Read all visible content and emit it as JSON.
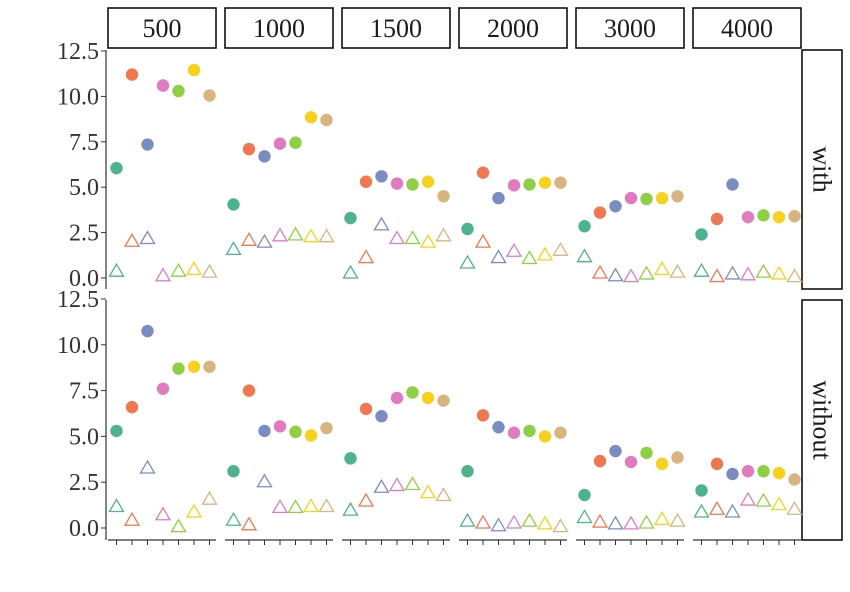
{
  "chart_data": {
    "type": "scatter",
    "facet_columns": [
      "500",
      "1000",
      "1500",
      "2000",
      "3000",
      "4000"
    ],
    "facet_rows": [
      "with",
      "without"
    ],
    "y_ticks": [
      "0.0",
      "2.5",
      "5.0",
      "7.5",
      "10.0",
      "12.5"
    ],
    "ylim": [
      0,
      12.5
    ],
    "grid": false,
    "x_labels_shown": false,
    "points_per_group": 7,
    "colors": [
      "#4db38a",
      "#f07850",
      "#7a8cc2",
      "#e07bc0",
      "#8fcf45",
      "#f7d11e",
      "#d8b47e"
    ],
    "series": [
      {
        "marker": "filled-circle",
        "values": {
          "with": [
            [
              6.05,
              11.2,
              7.35,
              10.6,
              10.3,
              11.45,
              10.05
            ],
            [
              4.05,
              7.1,
              6.7,
              7.4,
              7.45,
              8.85,
              8.7
            ],
            [
              3.3,
              5.3,
              5.6,
              5.2,
              5.15,
              5.3,
              4.5
            ],
            [
              2.7,
              5.8,
              4.4,
              5.1,
              5.15,
              5.25,
              5.25
            ],
            [
              2.85,
              3.6,
              3.95,
              4.4,
              4.35,
              4.4,
              4.5
            ],
            [
              2.4,
              3.25,
              5.15,
              3.35,
              3.45,
              3.35,
              3.4
            ]
          ],
          "without": [
            [
              5.3,
              6.6,
              10.75,
              7.6,
              8.7,
              8.8,
              8.8
            ],
            [
              3.1,
              7.5,
              5.3,
              5.55,
              5.25,
              5.05,
              5.45
            ],
            [
              3.8,
              6.5,
              6.1,
              7.1,
              7.4,
              7.1,
              6.95
            ],
            [
              3.1,
              6.15,
              5.5,
              5.2,
              5.3,
              5.0,
              5.2
            ],
            [
              1.8,
              3.65,
              4.2,
              3.6,
              4.1,
              3.5,
              3.85
            ],
            [
              2.05,
              3.5,
              2.95,
              3.1,
              3.1,
              3.0,
              2.65
            ]
          ]
        }
      },
      {
        "marker": "open-triangle",
        "values": {
          "with": [
            [
              0.35,
              2.0,
              2.15,
              0.1,
              0.35,
              0.45,
              0.3
            ],
            [
              1.55,
              2.05,
              1.95,
              2.3,
              2.35,
              2.25,
              2.25
            ],
            [
              0.25,
              1.1,
              2.9,
              2.15,
              2.15,
              1.95,
              2.3
            ],
            [
              0.8,
              1.95,
              1.1,
              1.45,
              1.05,
              1.25,
              1.5
            ],
            [
              1.15,
              0.25,
              0.1,
              0.05,
              0.2,
              0.45,
              0.3
            ],
            [
              0.35,
              0.05,
              0.2,
              0.15,
              0.3,
              0.2,
              0.05
            ]
          ],
          "without": [
            [
              1.15,
              0.4,
              3.25,
              0.7,
              0.05,
              0.85,
              1.55
            ],
            [
              0.4,
              0.15,
              2.5,
              1.1,
              1.1,
              1.15,
              1.15
            ],
            [
              0.95,
              1.45,
              2.2,
              2.3,
              2.35,
              1.9,
              1.75
            ],
            [
              0.35,
              0.25,
              0.1,
              0.25,
              0.35,
              0.2,
              0.05
            ],
            [
              0.55,
              0.3,
              0.2,
              0.2,
              0.25,
              0.45,
              0.35
            ],
            [
              0.85,
              1.0,
              0.85,
              1.5,
              1.45,
              1.25,
              1.0
            ]
          ]
        }
      }
    ]
  }
}
